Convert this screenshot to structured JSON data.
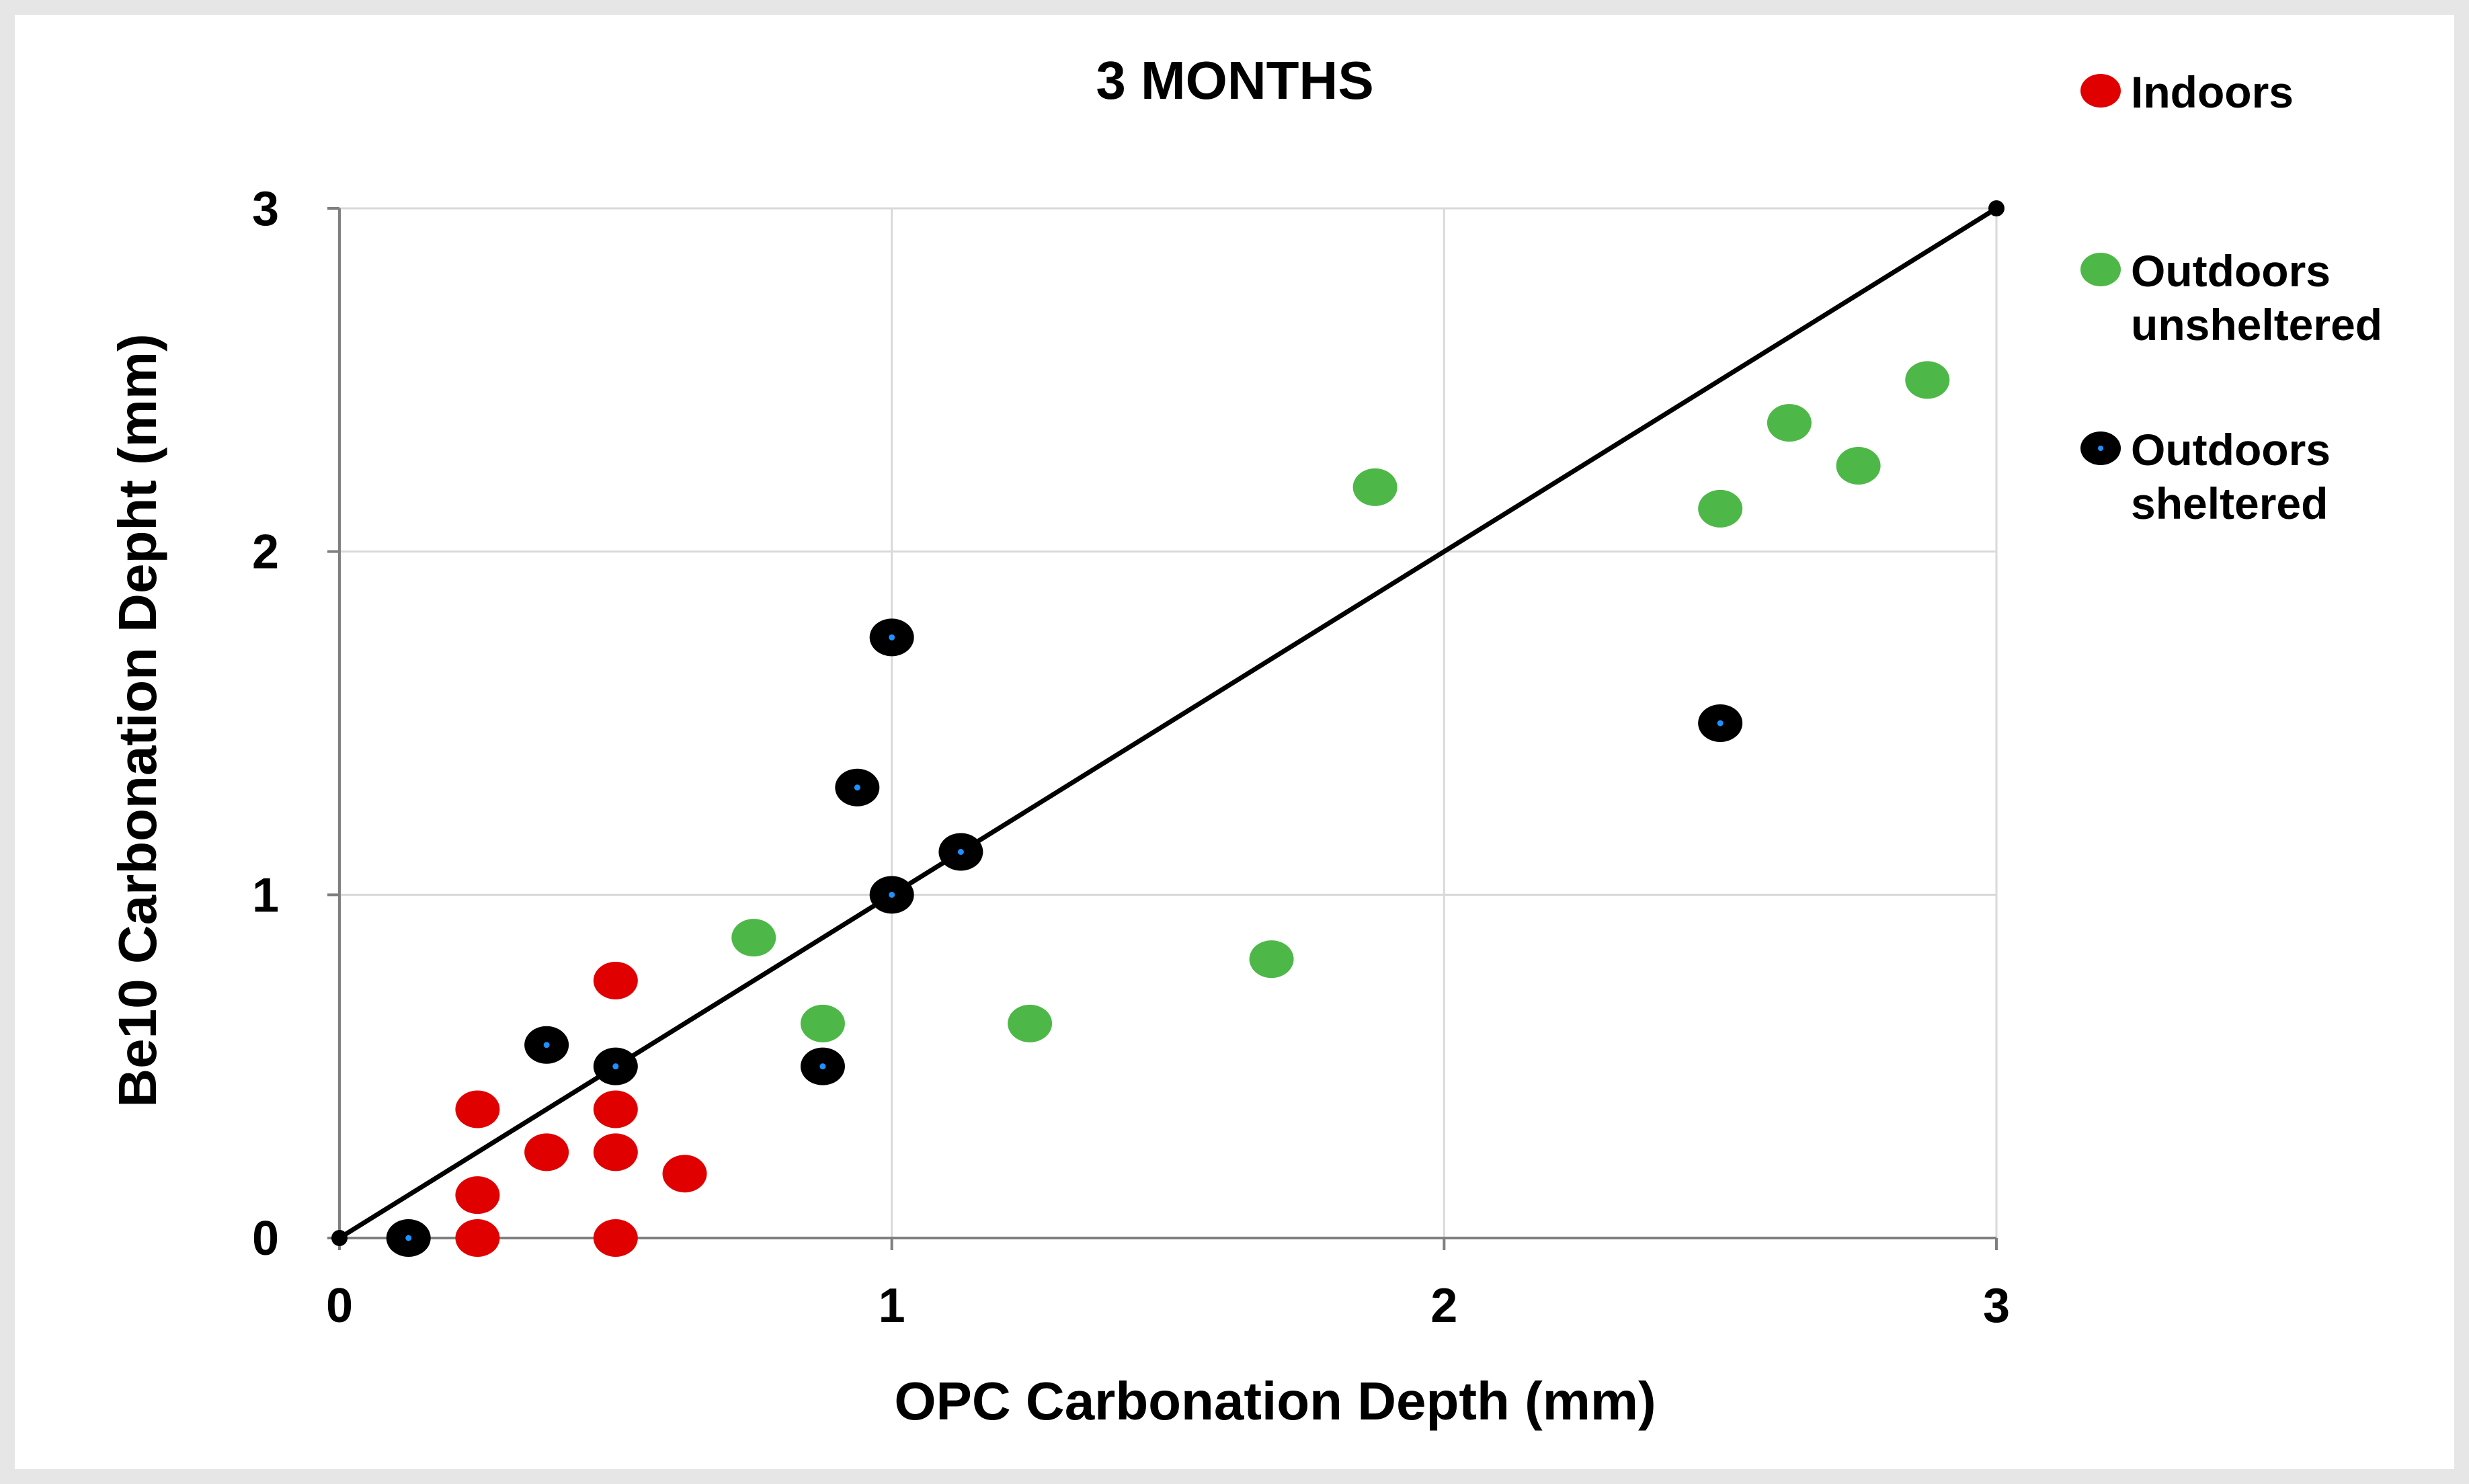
{
  "chart_data": {
    "type": "scatter",
    "title": "3 MONTHS",
    "xlabel": "OPC Carbonation Depth (mm)",
    "ylabel": "Be10 Carbonation Depht (mm)",
    "xlim": [
      0,
      3
    ],
    "ylim": [
      0,
      3
    ],
    "xticks": [
      "0",
      "1",
      "2",
      "3"
    ],
    "yticks": [
      "0",
      "1",
      "2",
      "3"
    ],
    "grid": true,
    "legend_placement": "right",
    "reference_line": {
      "from": [
        0,
        0
      ],
      "to": [
        3,
        3
      ],
      "color": "#000000"
    },
    "series": [
      {
        "legend_lines": [
          "Indoors"
        ],
        "color": "#e00000",
        "points": [
          [
            0.25,
            0.375
          ],
          [
            0.25,
            0.125
          ],
          [
            0.25,
            0.0
          ],
          [
            0.375,
            0.25
          ],
          [
            0.5,
            0.75
          ],
          [
            0.5,
            0.375
          ],
          [
            0.5,
            0.25
          ],
          [
            0.5,
            0.0
          ],
          [
            0.625,
            0.1875
          ]
        ]
      },
      {
        "legend_lines": [
          "Outdoors",
          "unsheltered"
        ],
        "color": "#4db848",
        "points": [
          [
            0.75,
            0.875
          ],
          [
            0.875,
            0.625
          ],
          [
            1.25,
            0.625
          ],
          [
            1.6875,
            0.8125
          ],
          [
            1.875,
            2.1875
          ],
          [
            2.5,
            2.125
          ],
          [
            2.625,
            2.375
          ],
          [
            2.75,
            2.25
          ],
          [
            2.875,
            2.5
          ]
        ]
      },
      {
        "legend_lines": [
          "Outdoors",
          "sheltered"
        ],
        "color": "#000000",
        "center_color": "#1e90ff",
        "points": [
          [
            0.125,
            0.0
          ],
          [
            0.375,
            0.5625
          ],
          [
            0.5,
            0.5
          ],
          [
            0.875,
            0.5
          ],
          [
            0.9375,
            1.3125
          ],
          [
            1.0,
            1.0
          ],
          [
            1.0,
            1.75
          ],
          [
            1.125,
            1.125
          ],
          [
            2.5,
            1.5
          ]
        ]
      }
    ]
  }
}
